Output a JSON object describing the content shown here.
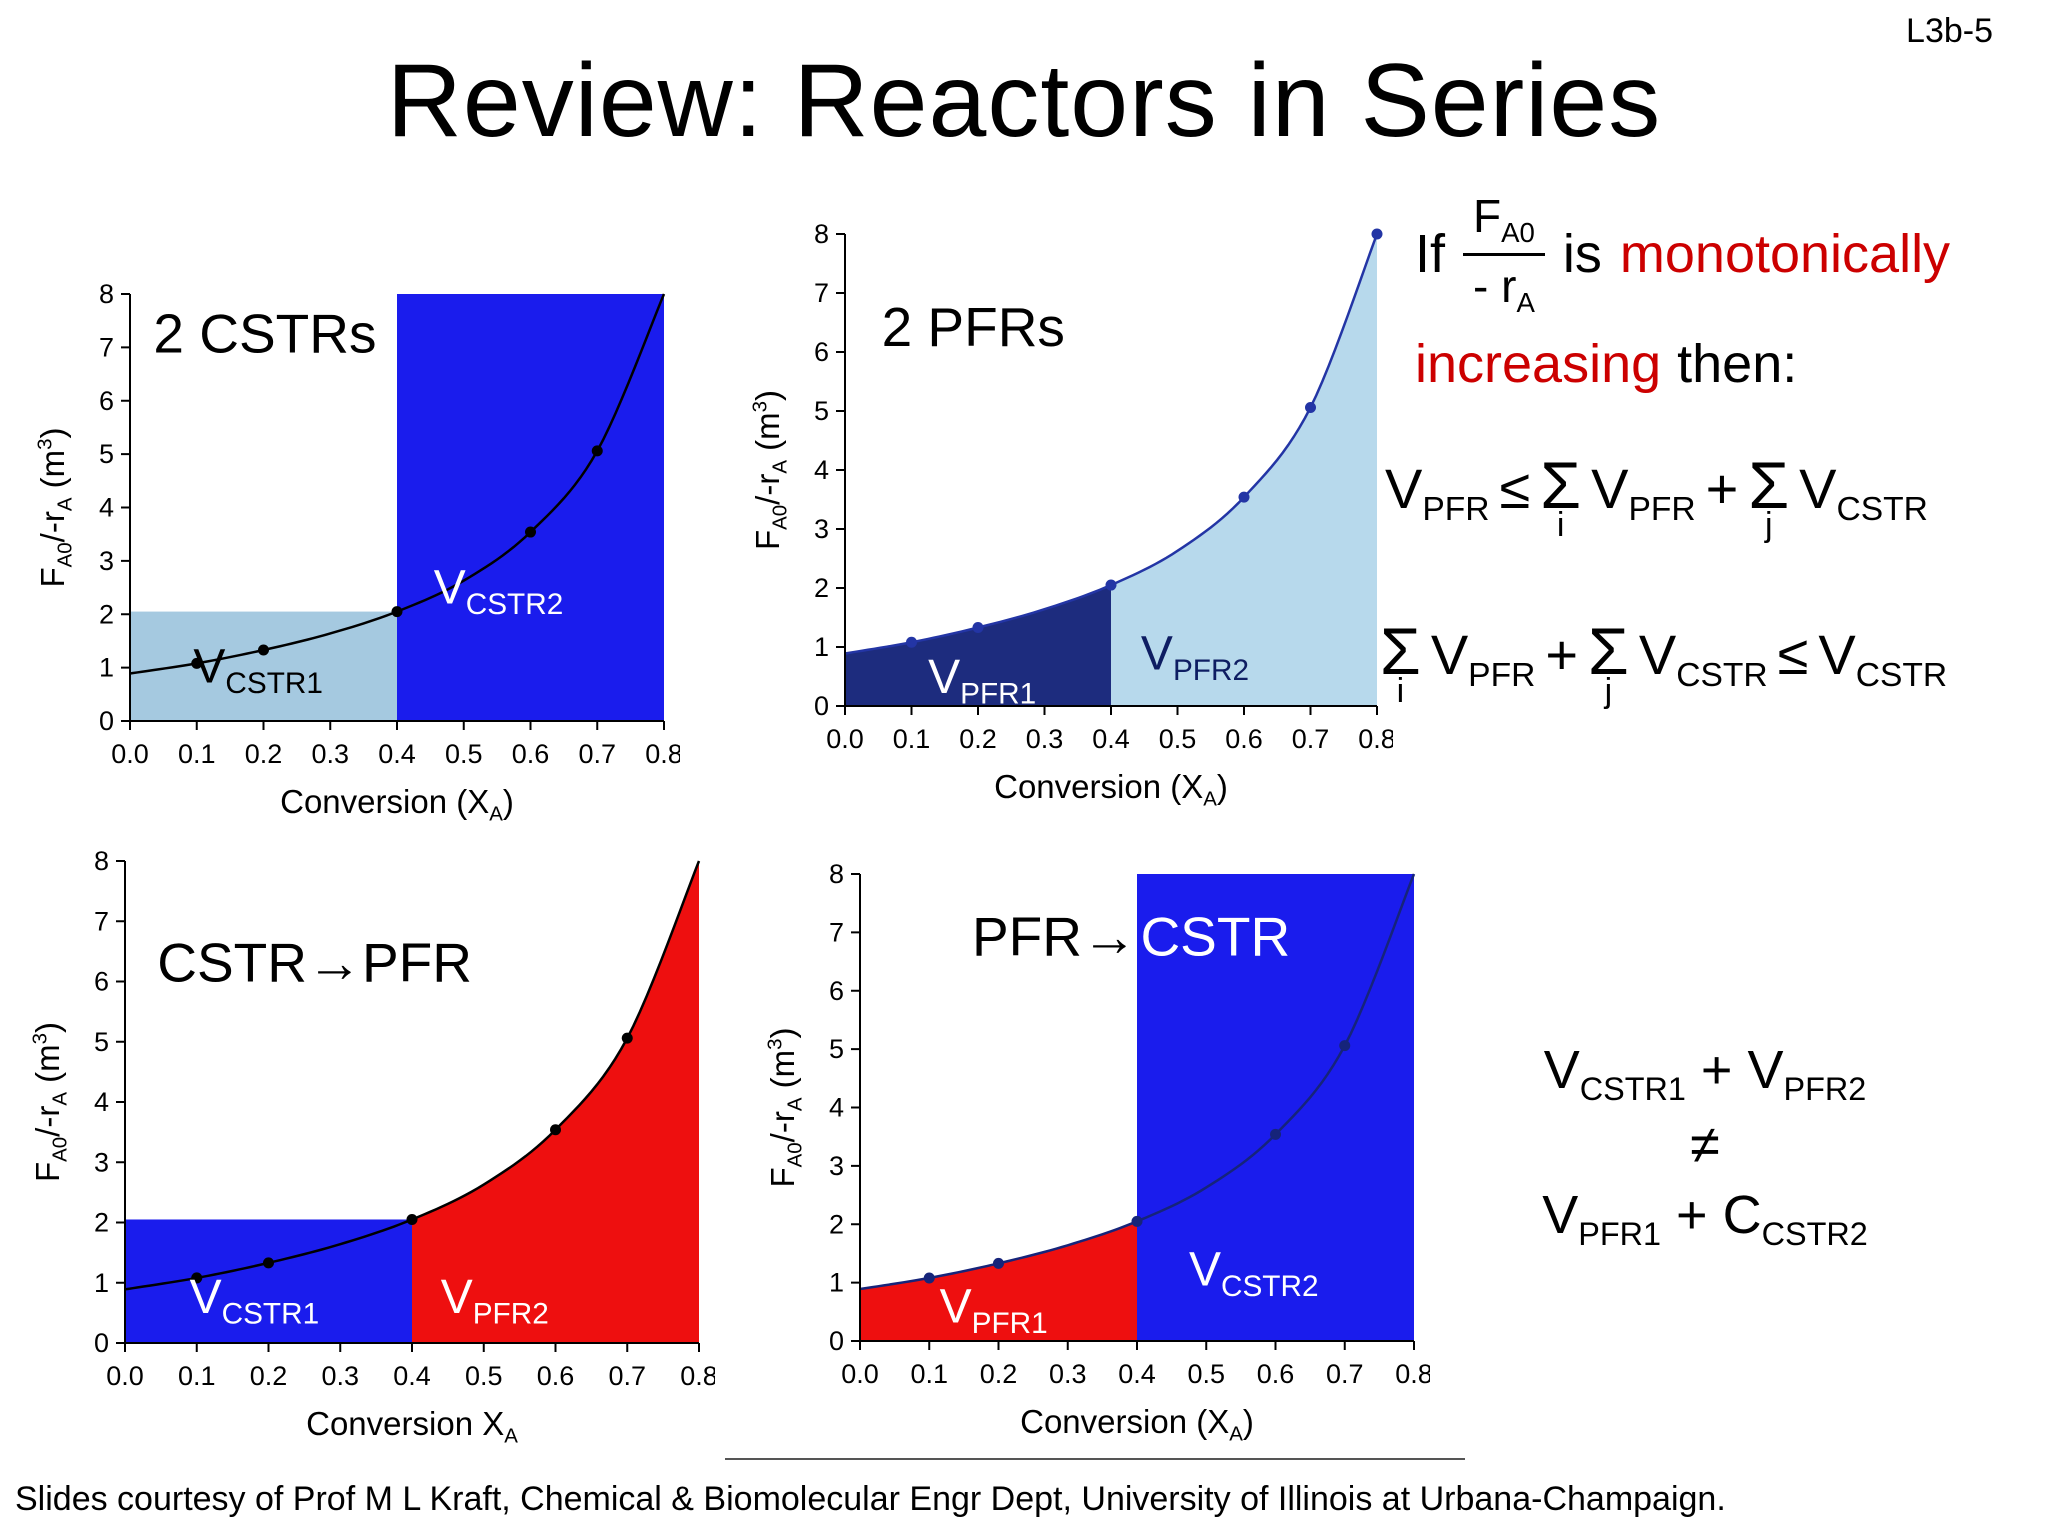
{
  "slide": {
    "code": "L3b-5",
    "title": "Review: Reactors in Series",
    "footer": "Slides courtesy of Prof M L Kraft, Chemical & Biomolecular Engr Dept, University of Illinois at Urbana-Champaign."
  },
  "colors": {
    "accent_red": "#cc0000",
    "bright_blue": "#1a1ced",
    "light_blue": "#a5c9e0",
    "pale_blue": "#b7d9ec",
    "navy": "#1d2c7e",
    "red_fill": "#ee0f0f"
  },
  "right_panel": {
    "conditional": {
      "if": "If",
      "frac_top": "F~A0~",
      "frac_bottom": "- r~A~",
      "is": "is",
      "monotonically": "monotonically",
      "increasing": "increasing",
      "then": "then:"
    },
    "ineq1": {
      "lhs": "V~PFR~",
      "le": "≤",
      "sigma1": "Σ",
      "sigma1_sub": "i",
      "term1": "V~PFR~",
      "plus": "+",
      "sigma2": "Σ",
      "sigma2_sub": "j",
      "term2": "V~CSTR~"
    },
    "ineq2": {
      "sigma1": "Σ",
      "sigma1_sub": "i",
      "term1": "V~PFR~",
      "plus": "+",
      "sigma2": "Σ",
      "sigma2_sub": "j",
      "term2": "V~CSTR~",
      "le": "≤",
      "rhs": "V~CSTR~"
    },
    "neq": {
      "line1": "V~CSTR1~ + V~PFR2~",
      "sym": "≠",
      "line2": "V~PFR1~ + C~CSTR2~"
    }
  },
  "chart_data": [
    {
      "type": "area",
      "title": "2 CSTRs",
      "xlabel": "Conversion (X~A~)",
      "ylabel": "F~A0~/-r~A~ (m^3^)",
      "xlim": [
        0,
        0.8
      ],
      "ylim": [
        0,
        8
      ],
      "xticks": [
        "0.0",
        "0.1",
        "0.2",
        "0.3",
        "0.4",
        "0.5",
        "0.6",
        "0.7",
        "0.8"
      ],
      "yticks": [
        "0",
        "1",
        "2",
        "3",
        "4",
        "5",
        "6",
        "7",
        "8"
      ],
      "curve": {
        "color": "#000000",
        "points": [
          [
            0,
            0.89
          ],
          [
            0.1,
            1.08
          ],
          [
            0.2,
            1.33
          ],
          [
            0.3,
            1.64
          ],
          [
            0.4,
            2.05
          ],
          [
            0.5,
            2.63
          ],
          [
            0.6,
            3.54
          ],
          [
            0.7,
            5.06
          ],
          [
            0.8,
            8.0
          ]
        ],
        "markers_x": [
          0.1,
          0.2,
          0.4,
          0.6,
          0.7
        ]
      },
      "regions": [
        {
          "kind": "rect",
          "x0": 0,
          "x1": 0.4,
          "y": 2.05,
          "fill": "#a5c9e0"
        },
        {
          "kind": "rect",
          "x0": 0.4,
          "x1": 0.8,
          "y": 8,
          "fill": "#1a1ced"
        }
      ],
      "annotations": [
        {
          "text": "2 CSTRs",
          "x": 0.035,
          "y": 6.9,
          "size": 55,
          "color": "#000000"
        },
        {
          "text": "V~CSTR1~",
          "x": 0.095,
          "y": 0.72,
          "size": 48,
          "color": "#000000"
        },
        {
          "text": "V~CSTR2~",
          "x": 0.455,
          "y": 2.2,
          "size": 48,
          "color": "#ffffff"
        }
      ]
    },
    {
      "type": "area",
      "title": "2 PFRs",
      "xlabel": "Conversion (X~A~)",
      "ylabel": "F~A0~/-r~A~ (m^3^)",
      "xlim": [
        0,
        0.8
      ],
      "ylim": [
        0,
        8
      ],
      "xticks": [
        "0.0",
        "0.1",
        "0.2",
        "0.3",
        "0.4",
        "0.5",
        "0.6",
        "0.7",
        "0.8"
      ],
      "yticks": [
        "0",
        "1",
        "2",
        "3",
        "4",
        "5",
        "6",
        "7",
        "8"
      ],
      "curve": {
        "color": "#2335a5",
        "points": [
          [
            0,
            0.89
          ],
          [
            0.1,
            1.08
          ],
          [
            0.2,
            1.33
          ],
          [
            0.3,
            1.64
          ],
          [
            0.4,
            2.05
          ],
          [
            0.5,
            2.63
          ],
          [
            0.6,
            3.54
          ],
          [
            0.7,
            5.06
          ],
          [
            0.8,
            8.0
          ]
        ],
        "markers_x": [
          0.1,
          0.2,
          0.4,
          0.6,
          0.7,
          0.8
        ]
      },
      "regions": [
        {
          "kind": "area",
          "x0": 0,
          "x1": 0.4,
          "fill": "#1d2c7e"
        },
        {
          "kind": "area",
          "x0": 0.4,
          "x1": 0.8,
          "fill": "#b7d9ec"
        }
      ],
      "annotations": [
        {
          "text": "2 PFRs",
          "x": 0.055,
          "y": 6.1,
          "size": 55,
          "color": "#000000"
        },
        {
          "text": "V~PFR1~",
          "x": 0.125,
          "y": 0.22,
          "size": 48,
          "color": "#ffffff"
        },
        {
          "text": "V~PFR2~",
          "x": 0.445,
          "y": 0.62,
          "size": 48,
          "color": "#0e1d62"
        }
      ]
    },
    {
      "type": "area",
      "title": "CSTR→PFR",
      "xlabel": "Conversion X~A~",
      "ylabel": "F~A0~/-r~A~ (m^3^)",
      "xlim": [
        0,
        0.8
      ],
      "ylim": [
        0,
        8
      ],
      "xticks": [
        "0.0",
        "0.1",
        "0.2",
        "0.3",
        "0.4",
        "0.5",
        "0.6",
        "0.7",
        "0.8"
      ],
      "yticks": [
        "0",
        "1",
        "2",
        "3",
        "4",
        "5",
        "6",
        "7",
        "8"
      ],
      "curve": {
        "color": "#000000",
        "points": [
          [
            0,
            0.89
          ],
          [
            0.1,
            1.08
          ],
          [
            0.2,
            1.33
          ],
          [
            0.3,
            1.64
          ],
          [
            0.4,
            2.05
          ],
          [
            0.5,
            2.63
          ],
          [
            0.6,
            3.54
          ],
          [
            0.7,
            5.06
          ],
          [
            0.8,
            8.0
          ]
        ],
        "markers_x": [
          0.1,
          0.2,
          0.4,
          0.6,
          0.7
        ]
      },
      "regions": [
        {
          "kind": "rect",
          "x0": 0,
          "x1": 0.4,
          "y": 2.05,
          "fill": "#1a1ced"
        },
        {
          "kind": "area",
          "x0": 0.4,
          "x1": 0.8,
          "fill": "#ee0f0f"
        }
      ],
      "annotations": [
        {
          "text": "CSTR→PFR",
          "x": 0.045,
          "y": 6.0,
          "size": 55,
          "color": "#000000"
        },
        {
          "text": "V~CSTR1~",
          "x": 0.09,
          "y": 0.5,
          "size": 48,
          "color": "#ffffff"
        },
        {
          "text": "V~PFR2~",
          "x": 0.44,
          "y": 0.5,
          "size": 48,
          "color": "#ffffff"
        }
      ]
    },
    {
      "type": "area",
      "title": "PFR→CSTR",
      "xlabel": "Conversion (X~A~)",
      "ylabel": "F~A0~/-r~A~ (m^3^)",
      "xlim": [
        0,
        0.8
      ],
      "ylim": [
        0,
        8
      ],
      "xticks": [
        "0.0",
        "0.1",
        "0.2",
        "0.3",
        "0.4",
        "0.5",
        "0.6",
        "0.7",
        "0.8"
      ],
      "yticks": [
        "0",
        "1",
        "2",
        "3",
        "4",
        "5",
        "6",
        "7",
        "8"
      ],
      "curve": {
        "color": "#16247a",
        "points": [
          [
            0,
            0.89
          ],
          [
            0.1,
            1.08
          ],
          [
            0.2,
            1.33
          ],
          [
            0.3,
            1.64
          ],
          [
            0.4,
            2.05
          ],
          [
            0.5,
            2.63
          ],
          [
            0.6,
            3.54
          ],
          [
            0.7,
            5.06
          ],
          [
            0.8,
            8.0
          ]
        ],
        "markers_x": [
          0.1,
          0.2,
          0.4,
          0.6,
          0.7
        ]
      },
      "regions": [
        {
          "kind": "area",
          "x0": 0,
          "x1": 0.4,
          "fill": "#ee0f0f"
        },
        {
          "kind": "rect",
          "x0": 0.4,
          "x1": 0.8,
          "y": 8,
          "fill": "#1a1ced"
        }
      ],
      "annotations": [
        {
          "text": "PFR→",
          "x": 0.4,
          "y": 6.6,
          "size": 55,
          "color": "#000000",
          "anchor": "end"
        },
        {
          "text": "CSTR",
          "x": 0.405,
          "y": 6.6,
          "size": 55,
          "color": "#ffffff",
          "anchor": "start"
        },
        {
          "text": "V~PFR1~",
          "x": 0.115,
          "y": 0.32,
          "size": 48,
          "color": "#ffffff"
        },
        {
          "text": "V~CSTR2~",
          "x": 0.475,
          "y": 0.95,
          "size": 48,
          "color": "#ffffff"
        }
      ]
    }
  ]
}
